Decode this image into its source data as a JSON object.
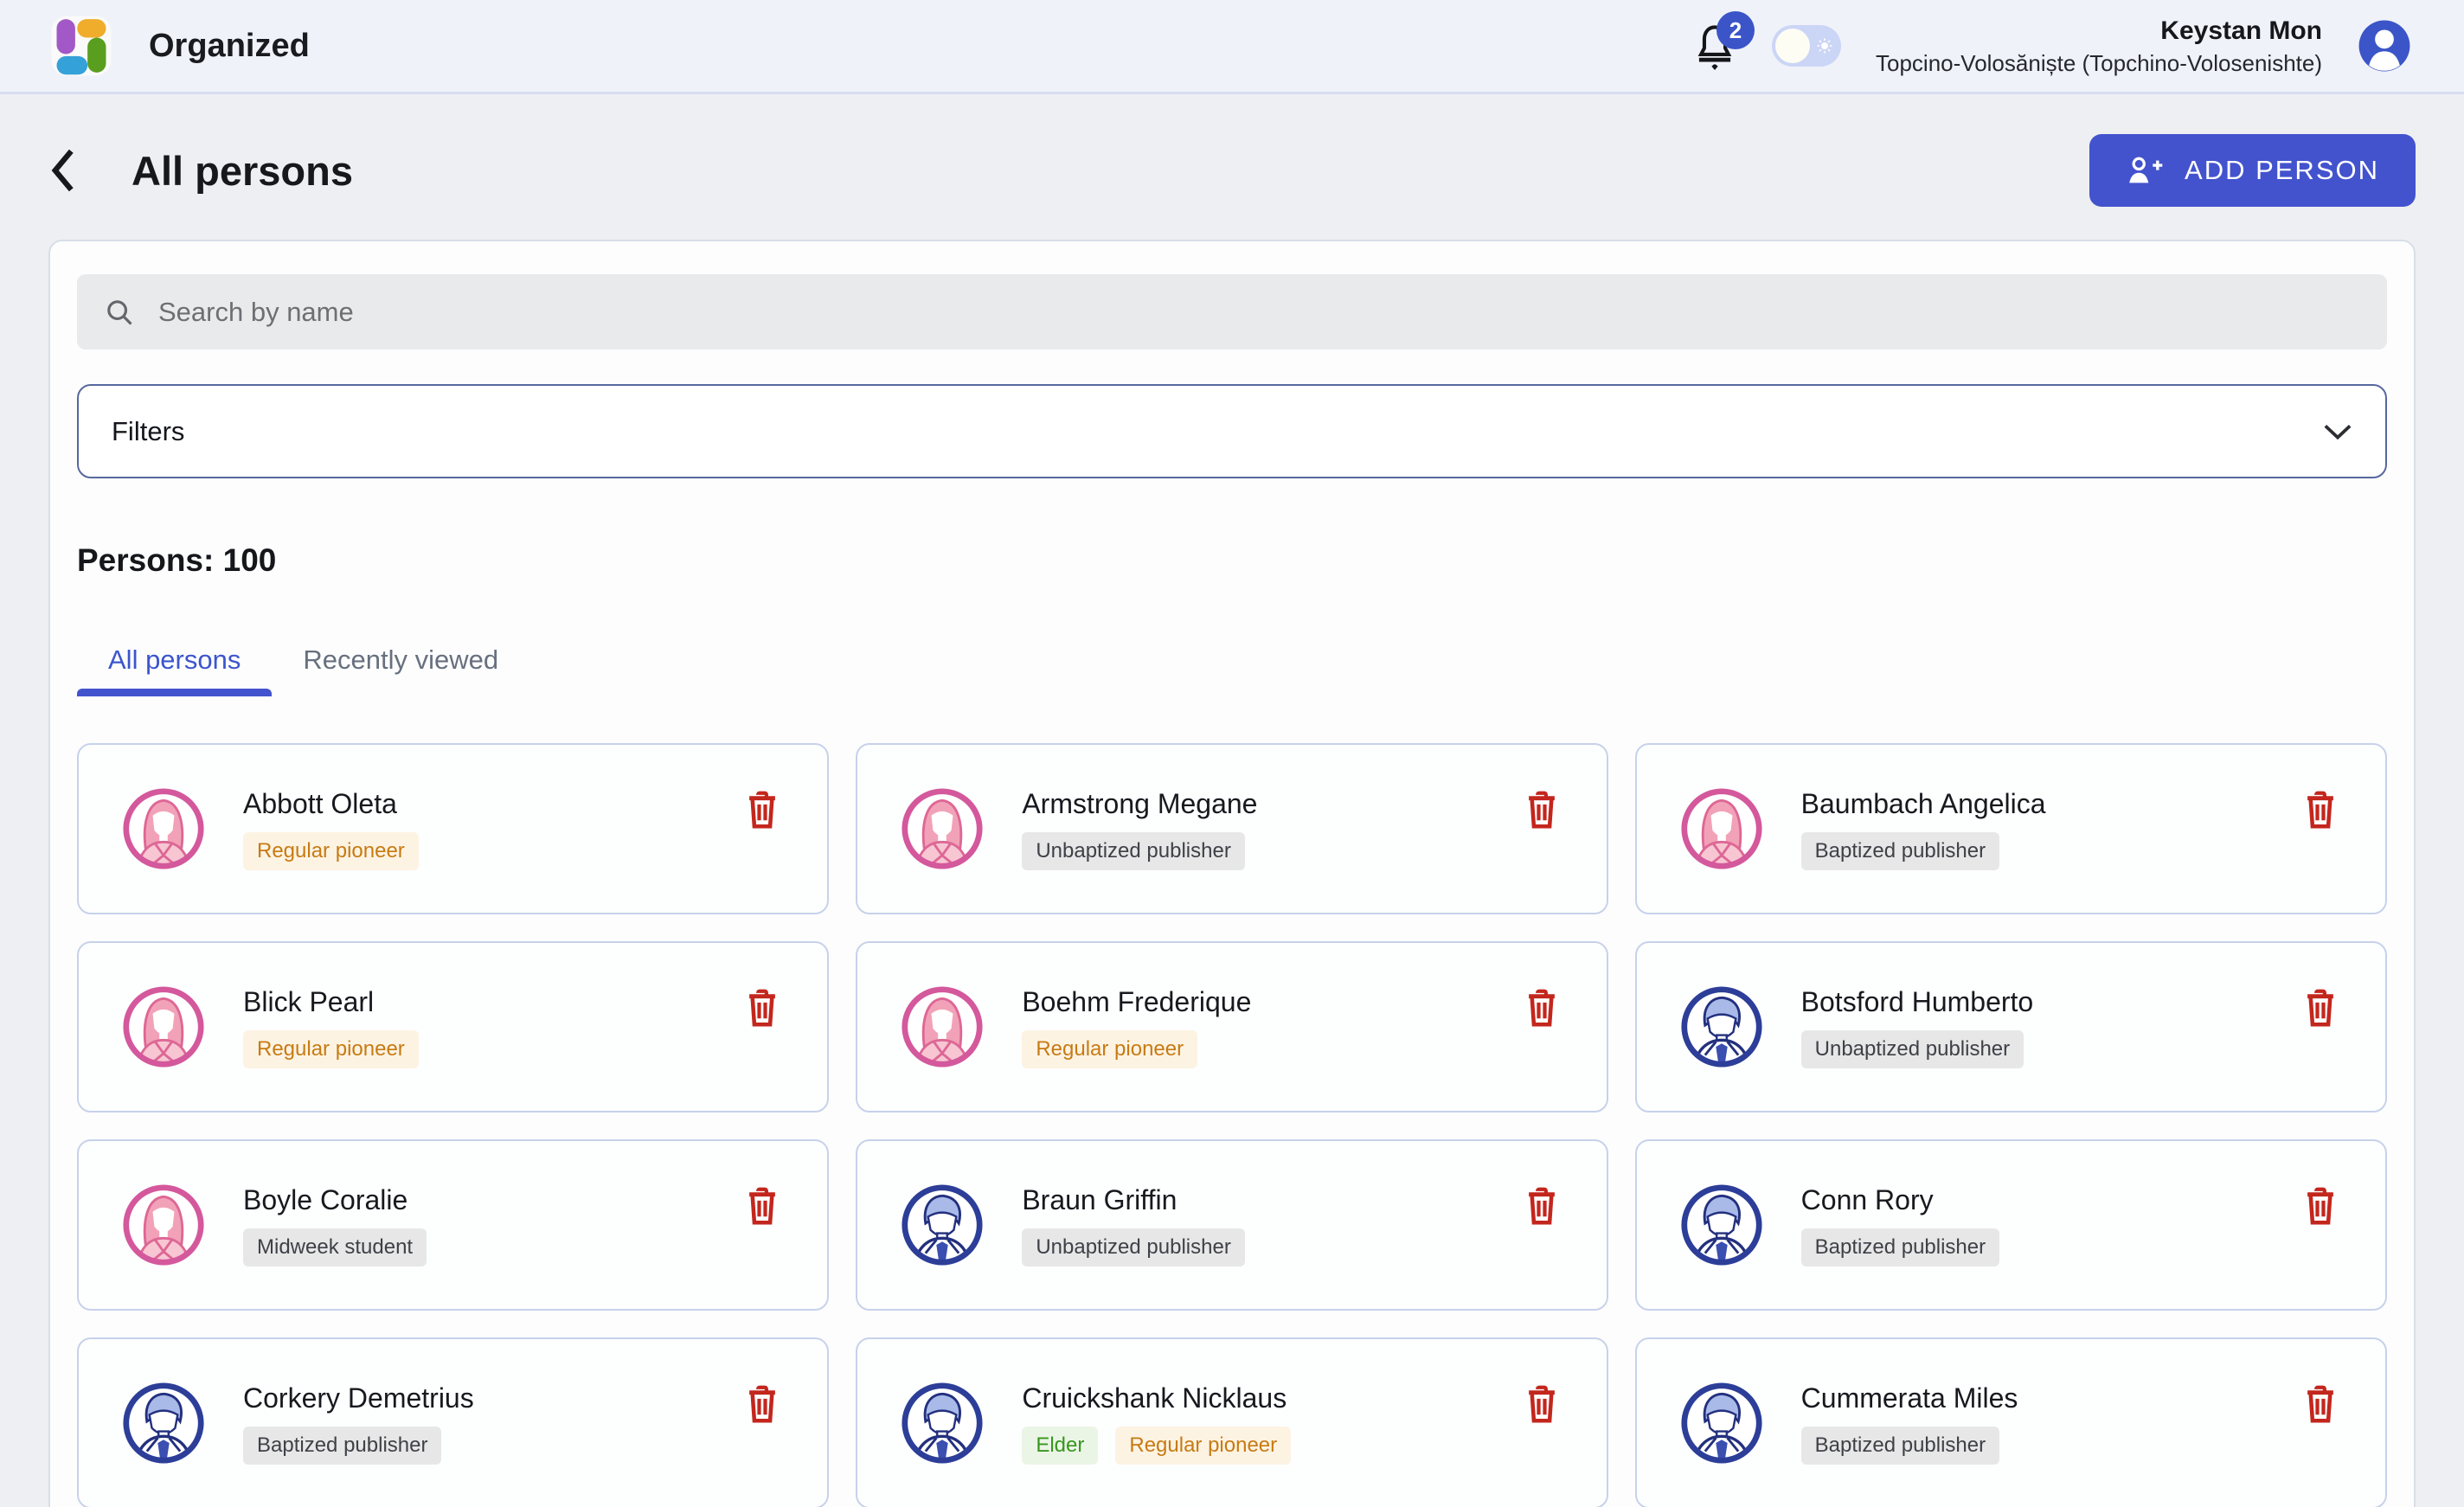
{
  "topbar": {
    "app_title": "Organized",
    "notifications_count": "2",
    "theme_toggle_state": "light",
    "user": {
      "name": "Keystan Mon",
      "congregation": "Topcino-Volosăniște (Topchino-Volosenishte)"
    }
  },
  "page": {
    "title": "All persons",
    "add_person_label": "ADD PERSON",
    "search_placeholder": "Search by name",
    "filters_label": "Filters",
    "persons_count_label": "Persons: 100",
    "tabs": [
      {
        "label": "All persons",
        "active": true
      },
      {
        "label": "Recently viewed",
        "active": false
      }
    ]
  },
  "persons": [
    {
      "name": "Abbott Oleta",
      "gender": "female",
      "badges": [
        {
          "label": "Regular pioneer",
          "color": "orange"
        }
      ]
    },
    {
      "name": "Armstrong Megane",
      "gender": "female",
      "badges": [
        {
          "label": "Unbaptized publisher",
          "color": "gray"
        }
      ]
    },
    {
      "name": "Baumbach Angelica",
      "gender": "female",
      "badges": [
        {
          "label": "Baptized publisher",
          "color": "gray"
        }
      ]
    },
    {
      "name": "Blick Pearl",
      "gender": "female",
      "badges": [
        {
          "label": "Regular pioneer",
          "color": "orange"
        }
      ]
    },
    {
      "name": "Boehm Frederique",
      "gender": "female",
      "badges": [
        {
          "label": "Regular pioneer",
          "color": "orange"
        }
      ]
    },
    {
      "name": "Botsford Humberto",
      "gender": "male",
      "badges": [
        {
          "label": "Unbaptized publisher",
          "color": "gray"
        }
      ]
    },
    {
      "name": "Boyle Coralie",
      "gender": "female",
      "badges": [
        {
          "label": "Midweek student",
          "color": "gray"
        }
      ]
    },
    {
      "name": "Braun Griffin",
      "gender": "male",
      "badges": [
        {
          "label": "Unbaptized publisher",
          "color": "gray"
        }
      ]
    },
    {
      "name": "Conn Rory",
      "gender": "male",
      "badges": [
        {
          "label": "Baptized publisher",
          "color": "gray"
        }
      ]
    },
    {
      "name": "Corkery Demetrius",
      "gender": "male",
      "badges": [
        {
          "label": "Baptized publisher",
          "color": "gray"
        }
      ]
    },
    {
      "name": "Cruickshank Nicklaus",
      "gender": "male",
      "badges": [
        {
          "label": "Elder",
          "color": "green"
        },
        {
          "label": "Regular pioneer",
          "color": "orange"
        }
      ]
    },
    {
      "name": "Cummerata Miles",
      "gender": "male",
      "badges": [
        {
          "label": "Baptized publisher",
          "color": "gray"
        }
      ]
    }
  ],
  "icons": {
    "back": "chevron-left",
    "search": "magnifier",
    "filters_expand": "chevron-down",
    "add_person": "person-plus",
    "notifications": "bell",
    "theme_toggle": "sun",
    "delete": "trash",
    "user": "person-circle"
  },
  "colors": {
    "accent": "#4353ce",
    "danger": "#c3261d",
    "topbar_bg": "#f0f2f9",
    "badge_orange_bg": "#fdf3e3",
    "badge_orange_text": "#c77b13",
    "badge_gray_bg": "#e7e7e8",
    "badge_gray_text": "#3f4147",
    "badge_green_bg": "#ebf5e6",
    "badge_green_text": "#38961f",
    "avatar_female_ring": "#d4589c",
    "avatar_male_ring": "#2c3e98"
  }
}
